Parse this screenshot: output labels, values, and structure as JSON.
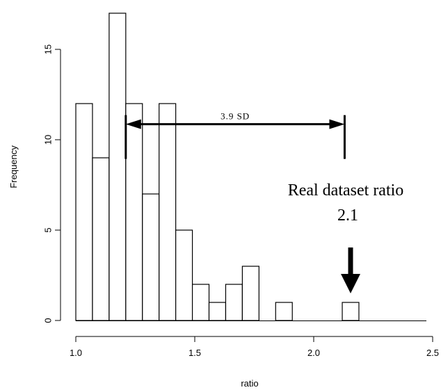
{
  "chart_data": {
    "type": "bar",
    "title": "",
    "xlabel": "ratio",
    "ylabel": "Frequency",
    "bin_width": 0.07,
    "bins": [
      {
        "start": 1.0,
        "count": 12
      },
      {
        "start": 1.07,
        "count": 9
      },
      {
        "start": 1.14,
        "count": 17
      },
      {
        "start": 1.21,
        "count": 12
      },
      {
        "start": 1.28,
        "count": 7
      },
      {
        "start": 1.35,
        "count": 12
      },
      {
        "start": 1.42,
        "count": 5
      },
      {
        "start": 1.49,
        "count": 2
      },
      {
        "start": 1.56,
        "count": 1
      },
      {
        "start": 1.63,
        "count": 2
      },
      {
        "start": 1.7,
        "count": 3
      },
      {
        "start": 1.77,
        "count": 0
      },
      {
        "start": 1.84,
        "count": 1
      },
      {
        "start": 1.91,
        "count": 0
      },
      {
        "start": 1.98,
        "count": 0
      },
      {
        "start": 2.05,
        "count": 0
      },
      {
        "start": 2.12,
        "count": 1
      }
    ],
    "x_ticks": [
      "1.0",
      "1.5",
      "2.0",
      "2.5"
    ],
    "x_tick_values": [
      1.0,
      1.5,
      2.0,
      2.5
    ],
    "y_ticks": [
      "0",
      "5",
      "10",
      "15"
    ],
    "y_tick_values": [
      0,
      5,
      10,
      15
    ],
    "xlim": [
      1.0,
      2.5
    ],
    "ylim": [
      0,
      17
    ],
    "grid": false,
    "annotations": {
      "sd_label": "3.9 SD",
      "sd_from": 1.21,
      "sd_to": 2.13,
      "sd_level": 10.9,
      "real_label_line1": "Real dataset ratio",
      "real_label_line2": "2.1",
      "real_arrow_x": 2.155
    }
  }
}
